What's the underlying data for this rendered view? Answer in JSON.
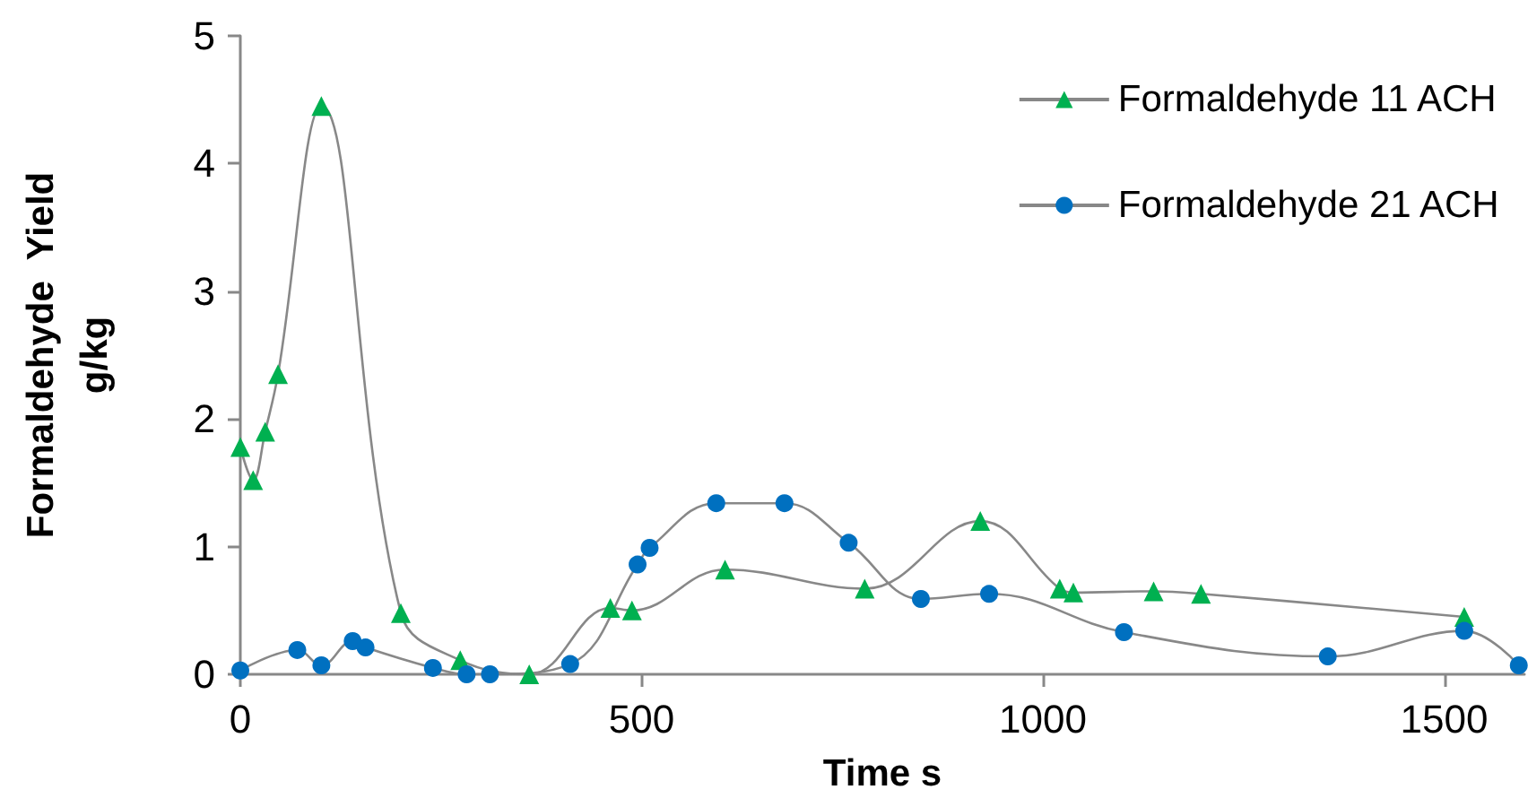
{
  "chart_data": {
    "type": "line",
    "xlabel": "Time s",
    "ylabel": "Formaldehyde  Yield\ng/kg",
    "xlim": [
      0,
      1600
    ],
    "xticks": [
      0,
      500,
      1000,
      1500
    ],
    "ylim": [
      0,
      5
    ],
    "yticks": [
      0,
      1,
      2,
      3,
      4,
      5
    ],
    "grid": false,
    "legend": "top right",
    "line_style": "solid",
    "series": [
      {
        "name": "Formaldehyde 11 ACH",
        "color": "#00b050",
        "marker": "triangle",
        "x": [
          0,
          16,
          31,
          47,
          101,
          200,
          274,
          360,
          461,
          488,
          604,
          778,
          922,
          1021,
          1038,
          1138,
          1197,
          1525
        ],
        "values": [
          1.78,
          1.52,
          1.9,
          2.35,
          4.45,
          0.48,
          0.11,
          0,
          0.52,
          0.5,
          0.82,
          0.67,
          1.2,
          0.67,
          0.64,
          0.65,
          0.63,
          0.45
        ]
      },
      {
        "name": "Formaldehyde 21 ACH",
        "color": "#0070c0",
        "marker": "circle",
        "x": [
          0,
          71,
          101,
          140,
          156,
          240,
          282,
          311,
          411,
          495,
          510,
          593,
          678,
          758,
          848,
          933,
          1101,
          1355,
          1525,
          1593
        ],
        "values": [
          0.03,
          0.19,
          0.07,
          0.26,
          0.21,
          0.05,
          0,
          0,
          0.08,
          0.86,
          0.99,
          1.34,
          1.34,
          1.03,
          0.59,
          0.63,
          0.33,
          0.14,
          0.34,
          0.07
        ]
      }
    ]
  }
}
